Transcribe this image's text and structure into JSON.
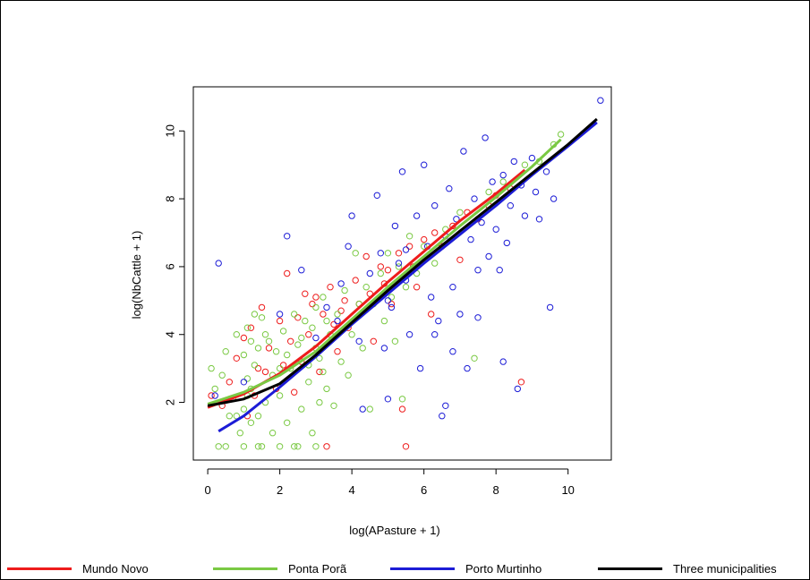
{
  "chart_data": {
    "type": "scatter",
    "title": "",
    "xlabel": "log(APasture + 1)",
    "ylabel": "log(NbCattle + 1)",
    "xlim": [
      -0.4,
      11.2
    ],
    "ylim": [
      0.3,
      11.3
    ],
    "xticks": [
      0,
      2,
      4,
      6,
      8,
      10
    ],
    "yticks": [
      2,
      4,
      6,
      8,
      10
    ],
    "x_tick_labels": [
      "0",
      "2",
      "4",
      "6",
      "8",
      "10"
    ],
    "y_tick_labels": [
      "2",
      "4",
      "6",
      "8",
      "10"
    ],
    "grid": false,
    "legend_position": "bottom",
    "series": [
      {
        "name": "Mundo Novo",
        "color": "#ee1c1c",
        "points": [
          [
            0.1,
            2.2
          ],
          [
            0.6,
            2.6
          ],
          [
            0.8,
            3.3
          ],
          [
            1.0,
            3.9
          ],
          [
            1.2,
            4.2
          ],
          [
            1.4,
            3.0
          ],
          [
            1.5,
            4.8
          ],
          [
            1.7,
            3.6
          ],
          [
            1.9,
            2.4
          ],
          [
            2.0,
            4.4
          ],
          [
            2.2,
            5.8
          ],
          [
            2.3,
            3.8
          ],
          [
            2.5,
            4.5
          ],
          [
            2.6,
            3.2
          ],
          [
            2.7,
            5.2
          ],
          [
            2.8,
            4.0
          ],
          [
            3.0,
            5.1
          ],
          [
            3.1,
            2.9
          ],
          [
            3.2,
            4.6
          ],
          [
            3.3,
            0.7
          ],
          [
            3.4,
            5.4
          ],
          [
            3.5,
            4.3
          ],
          [
            3.6,
            3.5
          ],
          [
            3.8,
            5.0
          ],
          [
            3.9,
            4.2
          ],
          [
            4.1,
            5.6
          ],
          [
            4.2,
            4.9
          ],
          [
            4.4,
            6.3
          ],
          [
            4.5,
            5.2
          ],
          [
            4.6,
            3.8
          ],
          [
            4.8,
            6.0
          ],
          [
            4.9,
            5.5
          ],
          [
            5.0,
            5.9
          ],
          [
            5.1,
            4.9
          ],
          [
            5.3,
            6.4
          ],
          [
            5.4,
            1.8
          ],
          [
            5.5,
            0.7
          ],
          [
            5.6,
            6.6
          ],
          [
            5.7,
            6.0
          ],
          [
            5.8,
            5.4
          ],
          [
            6.0,
            6.8
          ],
          [
            6.2,
            4.6
          ],
          [
            6.3,
            7.0
          ],
          [
            6.5,
            6.6
          ],
          [
            6.8,
            7.2
          ],
          [
            7.0,
            6.2
          ],
          [
            7.2,
            7.6
          ],
          [
            7.5,
            7.4
          ],
          [
            7.8,
            7.8
          ],
          [
            8.0,
            8.1
          ],
          [
            8.4,
            8.3
          ],
          [
            8.7,
            2.6
          ],
          [
            1.1,
            1.6
          ],
          [
            1.3,
            2.2
          ],
          [
            1.6,
            2.9
          ],
          [
            0.4,
            1.9
          ],
          [
            2.1,
            3.1
          ],
          [
            2.4,
            2.3
          ],
          [
            2.9,
            4.9
          ],
          [
            3.7,
            4.7
          ]
        ],
        "fit": [
          [
            0.0,
            1.85
          ],
          [
            1.0,
            2.25
          ],
          [
            2.0,
            2.85
          ],
          [
            3.0,
            3.65
          ],
          [
            4.0,
            4.6
          ],
          [
            5.0,
            5.55
          ],
          [
            6.0,
            6.45
          ],
          [
            7.0,
            7.35
          ],
          [
            8.0,
            8.15
          ],
          [
            8.8,
            8.85
          ]
        ]
      },
      {
        "name": "Ponta Porã",
        "color": "#7ac943",
        "points": [
          [
            0.1,
            3.0
          ],
          [
            0.2,
            2.4
          ],
          [
            0.3,
            0.7
          ],
          [
            0.4,
            2.8
          ],
          [
            0.5,
            3.5
          ],
          [
            0.6,
            1.6
          ],
          [
            0.7,
            2.1
          ],
          [
            0.8,
            4.0
          ],
          [
            0.9,
            1.1
          ],
          [
            1.0,
            3.4
          ],
          [
            1.1,
            2.7
          ],
          [
            1.1,
            4.2
          ],
          [
            1.2,
            1.4
          ],
          [
            1.3,
            3.1
          ],
          [
            1.4,
            0.7
          ],
          [
            1.5,
            4.5
          ],
          [
            1.6,
            2.0
          ],
          [
            1.7,
            3.8
          ],
          [
            1.8,
            1.1
          ],
          [
            1.9,
            3.5
          ],
          [
            2.0,
            2.2
          ],
          [
            2.1,
            4.1
          ],
          [
            2.2,
            1.4
          ],
          [
            2.3,
            3.0
          ],
          [
            2.4,
            0.7
          ],
          [
            2.5,
            3.7
          ],
          [
            2.6,
            1.8
          ],
          [
            2.7,
            4.4
          ],
          [
            2.8,
            2.6
          ],
          [
            2.9,
            1.1
          ],
          [
            3.0,
            4.8
          ],
          [
            3.1,
            3.3
          ],
          [
            3.2,
            5.1
          ],
          [
            3.3,
            2.4
          ],
          [
            3.4,
            4.0
          ],
          [
            3.5,
            1.9
          ],
          [
            3.6,
            4.6
          ],
          [
            3.7,
            3.2
          ],
          [
            3.8,
            5.3
          ],
          [
            3.9,
            2.8
          ],
          [
            4.0,
            4.0
          ],
          [
            4.1,
            6.4
          ],
          [
            4.2,
            4.9
          ],
          [
            4.3,
            3.6
          ],
          [
            4.4,
            5.4
          ],
          [
            4.5,
            1.8
          ],
          [
            4.6,
            4.9
          ],
          [
            4.8,
            5.8
          ],
          [
            4.9,
            4.4
          ],
          [
            5.0,
            6.4
          ],
          [
            5.1,
            5.1
          ],
          [
            5.2,
            3.8
          ],
          [
            5.3,
            6.0
          ],
          [
            5.4,
            2.1
          ],
          [
            5.5,
            5.4
          ],
          [
            5.6,
            6.9
          ],
          [
            5.8,
            5.8
          ],
          [
            6.0,
            6.6
          ],
          [
            6.3,
            6.1
          ],
          [
            6.6,
            7.1
          ],
          [
            7.0,
            7.6
          ],
          [
            7.4,
            3.3
          ],
          [
            7.8,
            8.2
          ],
          [
            8.2,
            8.5
          ],
          [
            8.8,
            9.0
          ],
          [
            9.2,
            9.1
          ],
          [
            9.6,
            9.6
          ],
          [
            9.8,
            9.9
          ],
          [
            0.5,
            0.7
          ],
          [
            1.0,
            0.7
          ],
          [
            1.5,
            0.7
          ],
          [
            2.0,
            0.7
          ],
          [
            2.5,
            0.7
          ],
          [
            3.0,
            0.7
          ],
          [
            0.8,
            1.6
          ],
          [
            1.2,
            2.4
          ],
          [
            1.4,
            3.6
          ],
          [
            1.6,
            4.0
          ],
          [
            1.8,
            2.8
          ],
          [
            2.0,
            3.0
          ],
          [
            2.2,
            3.4
          ],
          [
            2.4,
            4.6
          ],
          [
            2.6,
            3.9
          ],
          [
            2.8,
            3.1
          ],
          [
            3.0,
            3.6
          ],
          [
            3.2,
            2.9
          ],
          [
            1.0,
            1.8
          ],
          [
            1.1,
            2.2
          ],
          [
            1.2,
            3.8
          ],
          [
            1.3,
            4.6
          ],
          [
            1.4,
            1.6
          ],
          [
            2.9,
            4.2
          ],
          [
            3.1,
            2.0
          ],
          [
            3.3,
            4.4
          ]
        ],
        "fit": [
          [
            0.0,
            1.95
          ],
          [
            1.0,
            2.3
          ],
          [
            2.0,
            2.8
          ],
          [
            3.0,
            3.5
          ],
          [
            4.0,
            4.45
          ],
          [
            5.0,
            5.4
          ],
          [
            6.0,
            6.3
          ],
          [
            7.0,
            7.2
          ],
          [
            8.0,
            8.05
          ],
          [
            9.0,
            8.95
          ],
          [
            9.8,
            9.75
          ]
        ]
      },
      {
        "name": "Porto Murtinho",
        "color": "#1c1cd6",
        "points": [
          [
            0.2,
            2.2
          ],
          [
            0.3,
            6.1
          ],
          [
            1.0,
            2.6
          ],
          [
            2.0,
            4.6
          ],
          [
            2.2,
            6.9
          ],
          [
            2.6,
            5.9
          ],
          [
            3.0,
            3.9
          ],
          [
            3.3,
            4.8
          ],
          [
            3.6,
            4.4
          ],
          [
            3.9,
            6.6
          ],
          [
            4.0,
            7.5
          ],
          [
            4.2,
            3.8
          ],
          [
            4.3,
            1.8
          ],
          [
            4.5,
            5.8
          ],
          [
            4.7,
            8.1
          ],
          [
            4.8,
            6.4
          ],
          [
            5.0,
            2.1
          ],
          [
            5.1,
            4.8
          ],
          [
            5.2,
            7.2
          ],
          [
            5.3,
            6.1
          ],
          [
            5.4,
            8.8
          ],
          [
            5.5,
            5.6
          ],
          [
            5.6,
            4.0
          ],
          [
            5.8,
            7.5
          ],
          [
            5.9,
            3.0
          ],
          [
            6.0,
            9.0
          ],
          [
            6.1,
            6.6
          ],
          [
            6.2,
            5.1
          ],
          [
            6.3,
            7.8
          ],
          [
            6.4,
            4.4
          ],
          [
            6.5,
            1.6
          ],
          [
            6.6,
            6.9
          ],
          [
            6.7,
            8.3
          ],
          [
            6.8,
            5.4
          ],
          [
            6.9,
            7.4
          ],
          [
            7.0,
            4.6
          ],
          [
            7.1,
            9.4
          ],
          [
            7.2,
            3.0
          ],
          [
            7.3,
            6.8
          ],
          [
            7.4,
            8.0
          ],
          [
            7.5,
            5.9
          ],
          [
            7.6,
            7.3
          ],
          [
            7.7,
            9.8
          ],
          [
            7.8,
            6.3
          ],
          [
            7.9,
            8.5
          ],
          [
            8.0,
            7.1
          ],
          [
            8.1,
            5.9
          ],
          [
            8.2,
            8.7
          ],
          [
            8.3,
            6.7
          ],
          [
            8.4,
            7.8
          ],
          [
            8.5,
            9.1
          ],
          [
            8.6,
            2.4
          ],
          [
            8.7,
            8.4
          ],
          [
            8.8,
            7.5
          ],
          [
            9.0,
            9.2
          ],
          [
            9.1,
            8.2
          ],
          [
            9.2,
            7.4
          ],
          [
            9.4,
            8.8
          ],
          [
            9.5,
            4.8
          ],
          [
            9.6,
            8.0
          ],
          [
            10.9,
            10.9
          ],
          [
            6.6,
            1.9
          ],
          [
            5.0,
            5.0
          ],
          [
            5.5,
            6.5
          ],
          [
            6.3,
            4.0
          ],
          [
            7.5,
            4.5
          ],
          [
            8.2,
            3.2
          ],
          [
            3.7,
            5.5
          ],
          [
            4.9,
            3.6
          ],
          [
            6.8,
            3.5
          ]
        ],
        "fit": [
          [
            0.3,
            1.15
          ],
          [
            1.0,
            1.6
          ],
          [
            2.0,
            2.45
          ],
          [
            3.0,
            3.35
          ],
          [
            4.0,
            4.3
          ],
          [
            5.0,
            5.2
          ],
          [
            6.0,
            6.1
          ],
          [
            7.0,
            6.95
          ],
          [
            8.0,
            7.8
          ],
          [
            9.0,
            8.7
          ],
          [
            10.0,
            9.55
          ],
          [
            10.8,
            10.25
          ]
        ]
      },
      {
        "name": "Three municipalities",
        "color": "#000000",
        "points": [],
        "fit": [
          [
            0.0,
            1.9
          ],
          [
            1.0,
            2.1
          ],
          [
            2.0,
            2.55
          ],
          [
            3.0,
            3.4
          ],
          [
            4.0,
            4.35
          ],
          [
            5.0,
            5.3
          ],
          [
            6.0,
            6.2
          ],
          [
            7.0,
            7.05
          ],
          [
            8.0,
            7.9
          ],
          [
            9.0,
            8.75
          ],
          [
            10.0,
            9.6
          ],
          [
            10.8,
            10.35
          ]
        ]
      }
    ]
  }
}
